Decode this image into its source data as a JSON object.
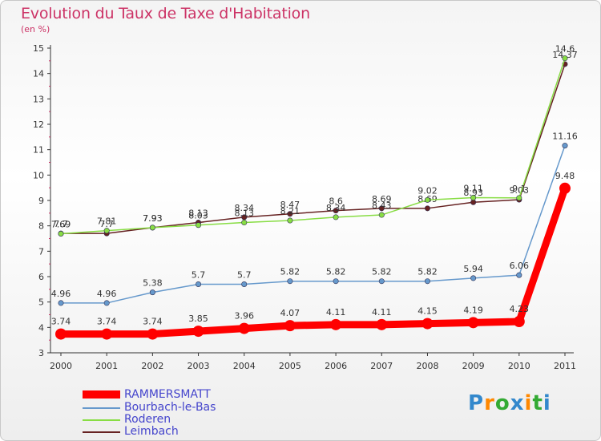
{
  "header": {
    "title": "Evolution du Taux de Taxe d'Habitation",
    "unit": "(en %)"
  },
  "brand": {
    "letters": [
      "P",
      "r",
      "o",
      "x",
      "i",
      "t",
      "i"
    ]
  },
  "chart_data": {
    "type": "line",
    "x": [
      "2000",
      "2001",
      "2002",
      "2003",
      "2004",
      "2005",
      "2006",
      "2007",
      "2008",
      "2009",
      "2010",
      "2011"
    ],
    "yticks": [
      "3",
      "4",
      "5",
      "6",
      "7",
      "8",
      "9",
      "10",
      "11",
      "12",
      "13",
      "14",
      "15"
    ],
    "ylim": [
      3,
      15
    ],
    "grid": false,
    "legend_position": "bottom-left",
    "series": [
      {
        "name": "Leimbach",
        "color": "#662222",
        "values": [
          7.7,
          7.7,
          7.93,
          8.13,
          8.34,
          8.47,
          8.6,
          8.69,
          8.69,
          8.93,
          9.03,
          14.37
        ],
        "labels": [
          "7.7",
          "7.7",
          "7.93",
          "8.13",
          "8.34",
          "8.47",
          "8.6",
          "8.69",
          "8.69",
          "8.93",
          "9.03",
          "14.37"
        ]
      },
      {
        "name": "Roderen",
        "color": "#88dd44",
        "values": [
          7.69,
          7.81,
          7.93,
          8.03,
          8.13,
          8.21,
          8.34,
          8.43,
          9.02,
          9.11,
          9.1,
          14.6
        ],
        "labels": [
          "7.69",
          "7.81",
          "7.93",
          "8.03",
          "8.13",
          "8.21",
          "8.34",
          "8.43",
          "9.02",
          "9.11",
          "9.1",
          "14.6"
        ]
      },
      {
        "name": "Bourbach-le-Bas",
        "color": "#6699cc",
        "values": [
          4.96,
          4.96,
          5.38,
          5.7,
          5.7,
          5.82,
          5.82,
          5.82,
          5.82,
          5.94,
          6.06,
          11.16
        ],
        "labels": [
          "4.96",
          "4.96",
          "5.38",
          "5.7",
          "5.7",
          "5.82",
          "5.82",
          "5.82",
          "5.82",
          "5.94",
          "6.06",
          "11.16"
        ]
      },
      {
        "name": "RAMMERSMATT",
        "color": "#ff0000",
        "values": [
          3.74,
          3.74,
          3.74,
          3.85,
          3.96,
          4.07,
          4.11,
          4.11,
          4.15,
          4.19,
          4.23,
          9.48
        ],
        "labels": [
          "3.74",
          "3.74",
          "3.74",
          "3.85",
          "3.96",
          "4.07",
          "4.11",
          "4.11",
          "4.15",
          "4.19",
          "4.23",
          "9.48"
        ]
      }
    ]
  }
}
